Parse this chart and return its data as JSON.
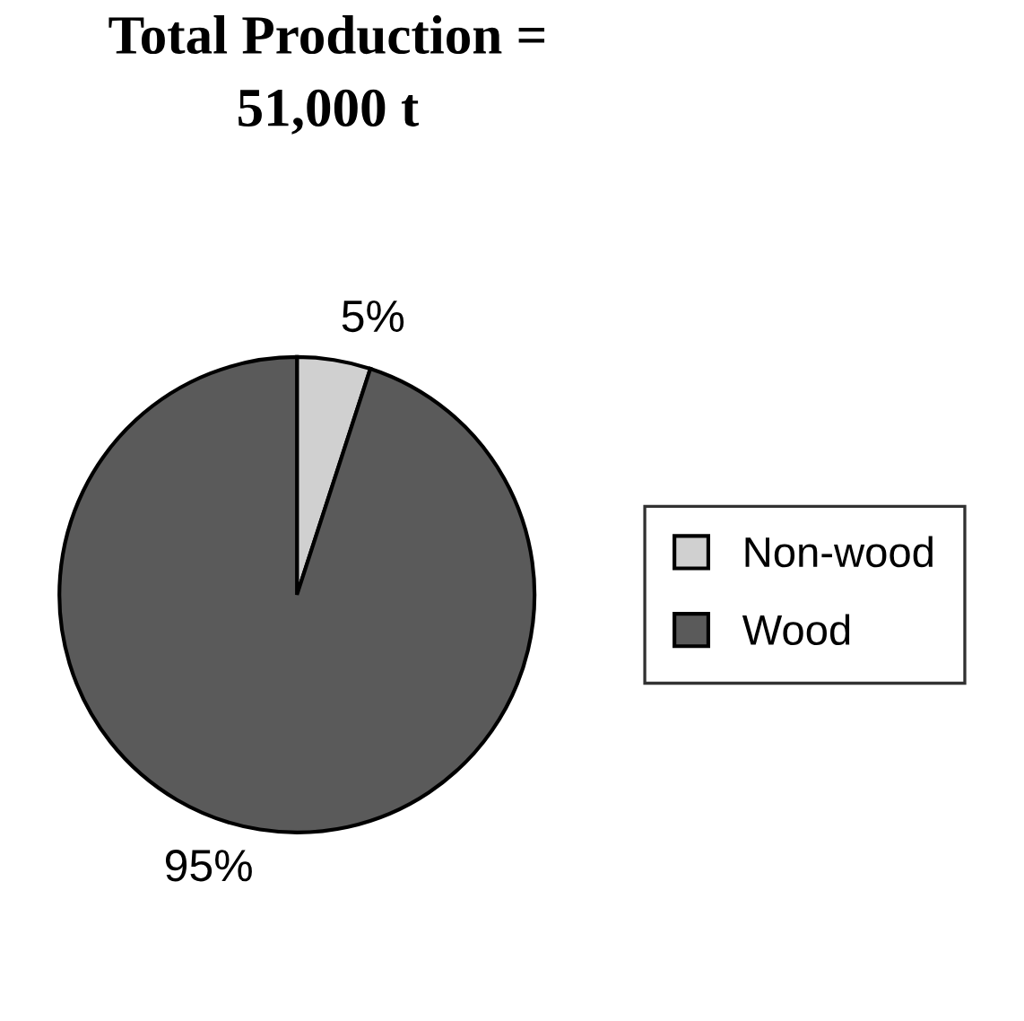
{
  "chart_data": {
    "type": "pie",
    "title": "Total Production =\n51,000 t",
    "categories": [
      "Non-wood",
      "Wood"
    ],
    "values": [
      5,
      95
    ],
    "colors": [
      "#d0d0d0",
      "#5a5a5a"
    ],
    "value_labels": [
      "5%",
      "95%"
    ],
    "legend": "right"
  }
}
